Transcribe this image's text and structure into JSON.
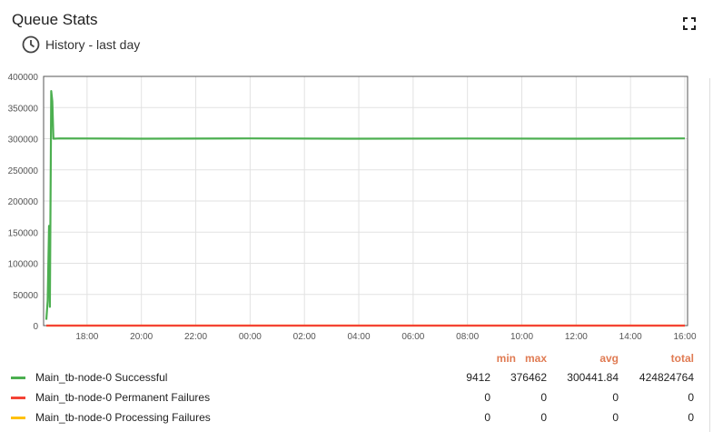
{
  "widget": {
    "title": "Queue Stats",
    "timewindow_label": "History - last day"
  },
  "legend": {
    "headers": [
      "min",
      "max",
      "avg",
      "total"
    ],
    "rows": [
      {
        "name": "Main_tb-node-0 Successful",
        "color": "#4caf50",
        "min": "9412",
        "max": "376462",
        "avg": "300441.84",
        "total": "424824764"
      },
      {
        "name": "Main_tb-node-0 Permanent Failures",
        "color": "#f44336",
        "min": "0",
        "max": "0",
        "avg": "0",
        "total": "0"
      },
      {
        "name": "Main_tb-node-0 Processing Failures",
        "color": "#ffc107",
        "min": "0",
        "max": "0",
        "avg": "0",
        "total": "0"
      }
    ]
  },
  "chart_data": {
    "type": "line",
    "title": "",
    "xlabel": "",
    "ylabel": "",
    "ylim": [
      0,
      400000
    ],
    "yticks": [
      "0",
      "50000",
      "100000",
      "150000",
      "200000",
      "250000",
      "300000",
      "350000",
      "400000"
    ],
    "xticks": [
      "18:00",
      "20:00",
      "22:00",
      "00:00",
      "02:00",
      "04:00",
      "06:00",
      "08:00",
      "10:00",
      "12:00",
      "14:00",
      "16:00"
    ],
    "xlim_hours": [
      16.4,
      40.1
    ],
    "grid": true,
    "series": [
      {
        "name": "Main_tb-node-0 Successful",
        "color": "#4caf50",
        "points": [
          [
            16.5,
            9412
          ],
          [
            16.55,
            40000
          ],
          [
            16.6,
            160000
          ],
          [
            16.63,
            30000
          ],
          [
            16.68,
            376462
          ],
          [
            16.72,
            360000
          ],
          [
            16.76,
            300000
          ],
          [
            17.0,
            300500
          ],
          [
            20.0,
            300000
          ],
          [
            24.0,
            300400
          ],
          [
            28.0,
            300000
          ],
          [
            32.0,
            300300
          ],
          [
            36.0,
            300000
          ],
          [
            40.0,
            300441
          ]
        ]
      },
      {
        "name": "Main_tb-node-0 Permanent Failures",
        "color": "#f44336",
        "points": [
          [
            16.5,
            0
          ],
          [
            40.0,
            0
          ]
        ]
      },
      {
        "name": "Main_tb-node-0 Processing Failures",
        "color": "#ffc107",
        "points": [
          [
            16.5,
            0
          ],
          [
            40.0,
            0
          ]
        ]
      }
    ]
  }
}
